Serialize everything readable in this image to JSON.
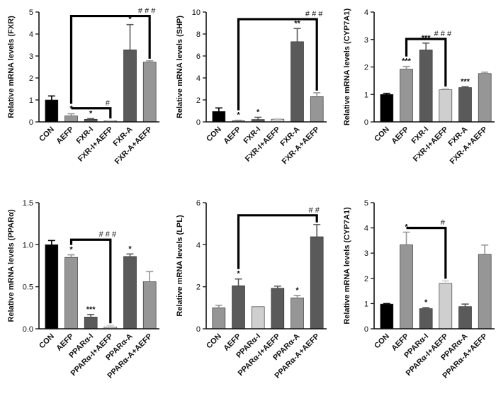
{
  "chart_data": [
    {
      "type": "bar",
      "ylabel": "Relative mRNA levels  (FXR)",
      "ylim": [
        0,
        5
      ],
      "yticks": [
        "0",
        "1",
        "2",
        "3",
        "4",
        "5"
      ],
      "categories": [
        "CON",
        "AEFP",
        "FXR-I",
        "FXR-I+AEFP",
        "FXR-A",
        "FXR-A+AEFP"
      ],
      "values": [
        1.0,
        0.27,
        0.12,
        0.04,
        3.28,
        2.72
      ],
      "errors": [
        0.18,
        0.1,
        0.03,
        0.02,
        1.15,
        0.06
      ],
      "colors": [
        "#000000",
        "#969696",
        "#5a5a5a",
        "#cfcfcf",
        "#5a5a5a",
        "#969696"
      ],
      "significance": [
        "",
        "*",
        "*",
        "",
        "*",
        ""
      ],
      "brackets": [
        {
          "from": "AEFP",
          "to": "FXR-A+AEFP",
          "label": "# # #",
          "level": 4.82
        },
        {
          "from": "AEFP",
          "to": "FXR-I+AEFP",
          "label": "#",
          "level": 0.62
        }
      ]
    },
    {
      "type": "bar",
      "ylabel": "Relative mRNA levels  (SHP)",
      "ylim": [
        0,
        10
      ],
      "yticks": [
        "0",
        "2",
        "4",
        "6",
        "8",
        "10"
      ],
      "categories": [
        "CON",
        "AEFP",
        "FXR-I",
        "FXR-I+AEFP",
        "FXR-A",
        "FXR-A+AEFP"
      ],
      "values": [
        0.95,
        0.1,
        0.22,
        0.25,
        7.3,
        2.3
      ],
      "errors": [
        0.32,
        0.05,
        0.2,
        0.04,
        1.2,
        0.35
      ],
      "colors": [
        "#000000",
        "#969696",
        "#5a5a5a",
        "#cfcfcf",
        "#5a5a5a",
        "#969696"
      ],
      "significance": [
        "",
        "*",
        "*",
        "",
        "**",
        ""
      ],
      "brackets": [
        {
          "from": "AEFP",
          "to": "FXR-A+AEFP",
          "label": "# # #",
          "level": 9.35
        }
      ]
    },
    {
      "type": "bar",
      "ylabel": "Relative mRNA levels  (CYP7A1)",
      "ylim": [
        0,
        4
      ],
      "yticks": [
        "0",
        "1",
        "2",
        "3",
        "4"
      ],
      "categories": [
        "CON",
        "AEFP",
        "FXR-I",
        "FXR-I+AEFP",
        "FXR-A",
        "FXR-A+AEFP"
      ],
      "values": [
        1.0,
        1.92,
        2.62,
        1.17,
        1.25,
        1.76
      ],
      "errors": [
        0.04,
        0.1,
        0.25,
        0.04,
        0.03,
        0.05
      ],
      "colors": [
        "#000000",
        "#969696",
        "#5a5a5a",
        "#cfcfcf",
        "#5a5a5a",
        "#969696"
      ],
      "significance": [
        "",
        "***",
        "***",
        "",
        "***",
        ""
      ],
      "brackets": [
        {
          "from": "AEFP",
          "to": "FXR-I+AEFP",
          "label": "# # #",
          "level": 3.02
        }
      ]
    },
    {
      "type": "bar",
      "ylabel": "Relative mRNA levels  (PPARα)",
      "ylim": [
        0,
        1.5
      ],
      "yticks": [
        "0.0",
        "0.5",
        "1.0",
        "1.5"
      ],
      "categories": [
        "CON",
        "AEFP",
        "PPARα-I",
        "PPARα-I+AEFP",
        "PPARα-A",
        "PPARα-A+AEFP"
      ],
      "values": [
        1.0,
        0.85,
        0.14,
        0.02,
        0.86,
        0.56
      ],
      "errors": [
        0.05,
        0.03,
        0.03,
        0.02,
        0.03,
        0.12
      ],
      "colors": [
        "#000000",
        "#969696",
        "#5a5a5a",
        "#cfcfcf",
        "#5a5a5a",
        "#969696"
      ],
      "significance": [
        "",
        "*",
        "***",
        "",
        "*",
        ""
      ],
      "brackets": [
        {
          "from": "AEFP",
          "to": "PPARα-I+AEFP",
          "label": "# # #",
          "level": 1.06
        }
      ]
    },
    {
      "type": "bar",
      "ylabel": "Relative mRNA levels  (LPL)",
      "ylim": [
        0,
        6
      ],
      "yticks": [
        "0",
        "2",
        "4",
        "6"
      ],
      "categories": [
        "CON",
        "AEFP",
        "PPARα-I",
        "PPARα-I+AEFP",
        "PPARα-A",
        "PPARα-A+AEFP"
      ],
      "values": [
        1.0,
        2.05,
        1.05,
        1.93,
        1.47,
        4.38
      ],
      "errors": [
        0.12,
        0.32,
        0.0,
        0.1,
        0.12,
        0.58
      ],
      "colors": [
        "#969696",
        "#5a5a5a",
        "#cfcfcf",
        "#5a5a5a",
        "#969696",
        "#5a5a5a"
      ],
      "significance": [
        "",
        "*",
        "",
        "",
        "*",
        ""
      ],
      "brackets": [
        {
          "from": "AEFP",
          "to": "PPARα-A+AEFP",
          "label": "# #",
          "level": 5.4
        }
      ]
    },
    {
      "type": "bar",
      "ylabel": "Relative mRNA levels  (CYP7A1)",
      "ylim": [
        0,
        5
      ],
      "yticks": [
        "0",
        "1",
        "2",
        "3",
        "4",
        "5"
      ],
      "categories": [
        "CON",
        "AEFP",
        "PPARα-I",
        "PPARα-I+AEFP",
        "PPARα-A",
        "PPARα-A+AEFP"
      ],
      "values": [
        0.98,
        3.33,
        0.8,
        1.8,
        0.88,
        2.95
      ],
      "errors": [
        0.02,
        0.5,
        0.04,
        0.1,
        0.1,
        0.37
      ],
      "colors": [
        "#000000",
        "#969696",
        "#5a5a5a",
        "#cfcfcf",
        "#5a5a5a",
        "#969696"
      ],
      "significance": [
        "",
        "*",
        "*",
        "",
        "",
        ""
      ],
      "brackets": [
        {
          "from": "AEFP",
          "to": "PPARα-I+AEFP",
          "label": "#",
          "level": 4.0
        }
      ]
    }
  ]
}
